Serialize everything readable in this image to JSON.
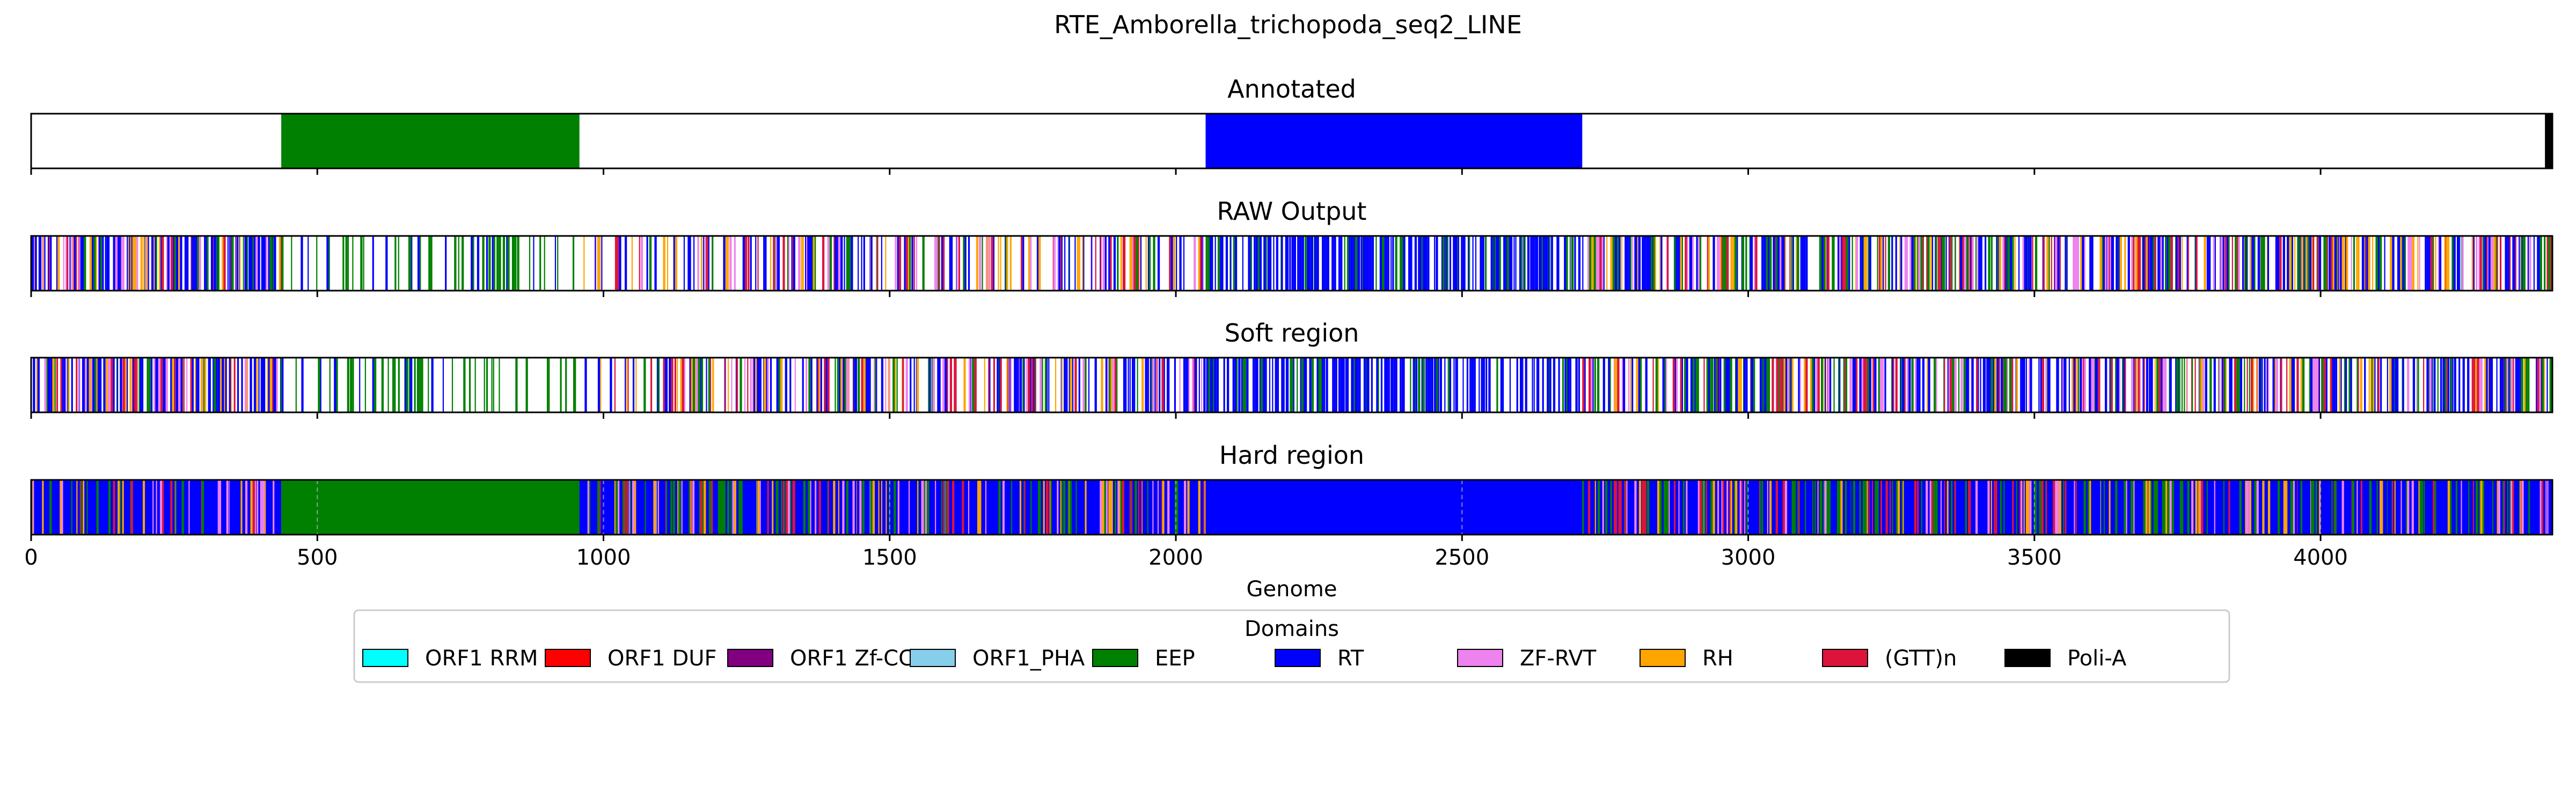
{
  "chart_data": {
    "type": "track",
    "title": "RTE_Amborella_trichopoda_seq2_LINE",
    "xlabel": "Genome",
    "xlim": [
      0,
      4405
    ],
    "xticks": [
      0,
      500,
      1000,
      1500,
      2000,
      2500,
      3000,
      3500,
      4000
    ],
    "legend": {
      "title": "Domains",
      "placement": "bottom-center",
      "items": [
        {
          "name": "ORF1 RRM",
          "color": "#00FFFF"
        },
        {
          "name": "ORF1 DUF",
          "color": "#FF0000"
        },
        {
          "name": "ORF1 Zf-CCHC",
          "color": "#800080"
        },
        {
          "name": "ORF1_PHA",
          "color": "#87CEEB"
        },
        {
          "name": "EEP",
          "color": "#008000"
        },
        {
          "name": "RT",
          "color": "#0000FF"
        },
        {
          "name": "ZF-RVT",
          "color": "#EE82EE"
        },
        {
          "name": "RH",
          "color": "#FFA500"
        },
        {
          "name": "(GTT)n",
          "color": "#DC143C"
        },
        {
          "name": "Poli-A",
          "color": "#000000"
        }
      ]
    },
    "tracks": [
      {
        "name": "Annotated",
        "segments": [
          {
            "domain": "EEP",
            "start": 437,
            "end": 958
          },
          {
            "domain": "RT",
            "start": 2052,
            "end": 2710
          },
          {
            "domain": "Poli-A",
            "start": 4392,
            "end": 4405
          }
        ]
      },
      {
        "name": "RAW Output",
        "profile": [
          {
            "start": 0,
            "end": 437,
            "base": "none",
            "mix": [
              "RT",
              "RT",
              "RT",
              "EEP",
              "RT",
              "ZF-RVT",
              "(GTT)n",
              "RH"
            ],
            "density": 0.72
          },
          {
            "start": 437,
            "end": 958,
            "base": "none",
            "mix": [
              "EEP",
              "EEP",
              "EEP",
              "RT"
            ],
            "density": 0.26
          },
          {
            "start": 958,
            "end": 1255,
            "base": "none",
            "mix": [
              "EEP",
              "RT",
              "RT",
              "ZF-RVT",
              "RH",
              "(GTT)n"
            ],
            "density": 0.35
          },
          {
            "start": 1255,
            "end": 2052,
            "base": "none",
            "mix": [
              "RT",
              "RT",
              "RT",
              "EEP",
              "ZF-RVT",
              "(GTT)n",
              "RH"
            ],
            "density": 0.48
          },
          {
            "start": 2052,
            "end": 2710,
            "base": "none",
            "mix": [
              "RT",
              "RT",
              "RT",
              "RT",
              "EEP"
            ],
            "density": 0.62
          },
          {
            "start": 2710,
            "end": 4405,
            "base": "none",
            "mix": [
              "RT",
              "RT",
              "RT",
              "EEP",
              "EEP",
              "ZF-RVT",
              "RH",
              "(GTT)n"
            ],
            "density": 0.66
          }
        ]
      },
      {
        "name": "Soft region",
        "profile": [
          {
            "start": 0,
            "end": 437,
            "base": "none",
            "mix": [
              "RT",
              "RT",
              "RT",
              "EEP",
              "RT",
              "ZF-RVT",
              "(GTT)n",
              "RH"
            ],
            "density": 0.72
          },
          {
            "start": 437,
            "end": 958,
            "base": "none",
            "mix": [
              "EEP",
              "EEP",
              "EEP",
              "RT"
            ],
            "density": 0.26
          },
          {
            "start": 958,
            "end": 1255,
            "base": "none",
            "mix": [
              "EEP",
              "RT",
              "RT",
              "ZF-RVT",
              "RH",
              "(GTT)n"
            ],
            "density": 0.35
          },
          {
            "start": 1255,
            "end": 2052,
            "base": "none",
            "mix": [
              "RT",
              "RT",
              "RT",
              "EEP",
              "ZF-RVT",
              "(GTT)n",
              "RH"
            ],
            "density": 0.48
          },
          {
            "start": 2052,
            "end": 2710,
            "base": "none",
            "mix": [
              "RT",
              "RT",
              "RT",
              "RT",
              "EEP"
            ],
            "density": 0.62
          },
          {
            "start": 2710,
            "end": 4405,
            "base": "none",
            "mix": [
              "RT",
              "RT",
              "RT",
              "EEP",
              "EEP",
              "ZF-RVT",
              "RH",
              "(GTT)n"
            ],
            "density": 0.66
          }
        ]
      },
      {
        "name": "Hard region",
        "profile": [
          {
            "start": 0,
            "end": 437,
            "base": "RT",
            "mix": [
              "RT",
              "EEP",
              "ZF-RVT",
              "(GTT)n",
              "RH"
            ],
            "density": 0.45
          },
          {
            "start": 437,
            "end": 958,
            "base": "EEP",
            "mix": [],
            "density": 0
          },
          {
            "start": 958,
            "end": 2052,
            "base": "RT",
            "mix": [
              "EEP",
              "EEP",
              "ZF-RVT",
              "RH",
              "(GTT)n",
              "RT"
            ],
            "density": 0.42
          },
          {
            "start": 2052,
            "end": 2710,
            "base": "RT",
            "mix": [],
            "density": 0
          },
          {
            "start": 2710,
            "end": 4405,
            "base": "RT",
            "mix": [
              "EEP",
              "EEP",
              "ZF-RVT",
              "RH",
              "(GTT)n",
              "RT"
            ],
            "density": 0.45
          }
        ]
      }
    ]
  }
}
